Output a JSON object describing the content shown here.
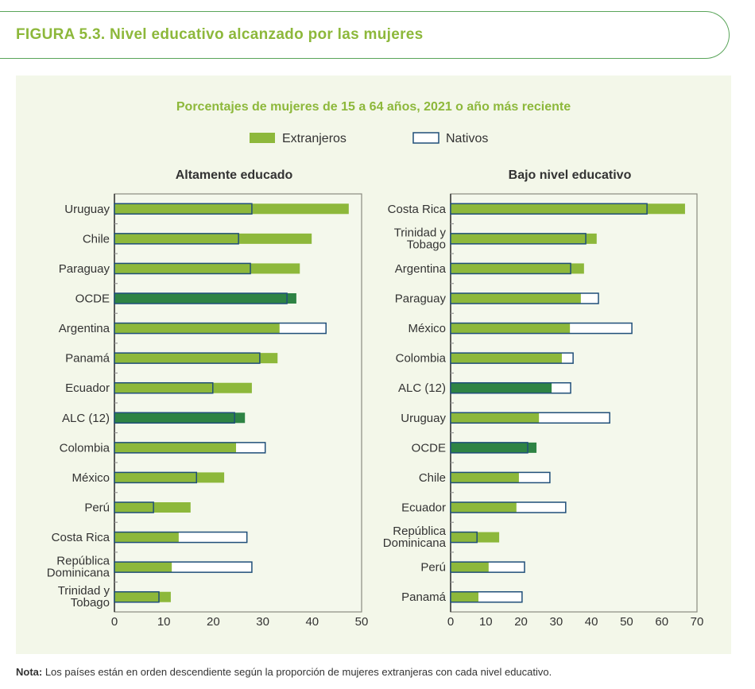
{
  "header": {
    "title": "FIGURA 5.3. Nivel educativo alcanzado por las mujeres"
  },
  "note": {
    "label": "Nota:",
    "text": " Los países están en orden descendiente según la proporción de mujeres extranjeras con cada nivel educativo."
  },
  "colors": {
    "extranjeros": "#8db83b",
    "aggregate": "#2e8344",
    "nativos_outline": "#1f4e79",
    "title_green": "#8db83b"
  },
  "chart_subtitle": "Porcentajes de mujeres de 15 a 64 años, 2021 o año más reciente",
  "legend": [
    {
      "name": "Extranjeros",
      "style": "filled"
    },
    {
      "name": "Nativos",
      "style": "outline"
    }
  ],
  "chart_data": [
    {
      "type": "bar",
      "orientation": "horizontal",
      "title": "Altamente educado",
      "xlim": [
        0,
        50
      ],
      "xticks": [
        0,
        10,
        20,
        30,
        40,
        50
      ],
      "categories": [
        "Uruguay",
        "Chile",
        "Paraguay",
        "OCDE",
        "Argentina",
        "Panamá",
        "Ecuador",
        "ALC (12)",
        "Colombia",
        "México",
        "Perú",
        "Costa Rica",
        "República Dominicana",
        "Trinidad y Tobago"
      ],
      "aggregates": [
        "OCDE",
        "ALC (12)"
      ],
      "series": [
        {
          "name": "Extranjeros",
          "values": [
            47.4,
            39.9,
            37.5,
            36.8,
            33.4,
            33.0,
            27.8,
            26.4,
            24.6,
            22.2,
            15.4,
            13.0,
            11.6,
            11.4
          ]
        },
        {
          "name": "Nativos",
          "values": [
            27.8,
            25.1,
            27.5,
            34.9,
            42.8,
            29.4,
            19.9,
            24.3,
            30.5,
            16.6,
            7.9,
            26.8,
            27.8,
            9.0
          ]
        }
      ]
    },
    {
      "type": "bar",
      "orientation": "horizontal",
      "title": "Bajo nivel educativo",
      "xlim": [
        0,
        70
      ],
      "xticks": [
        0,
        10,
        20,
        30,
        40,
        50,
        60,
        70
      ],
      "categories": [
        "Costa Rica",
        "Trinidad y Tobago",
        "Argentina",
        "Paraguay",
        "México",
        "Colombia",
        "ALC (12)",
        "Uruguay",
        "OCDE",
        "Chile",
        "Ecuador",
        "República Dominicana",
        "Perú",
        "Panamá"
      ],
      "aggregates": [
        "OCDE",
        "ALC (12)"
      ],
      "series": [
        {
          "name": "Extranjeros",
          "values": [
            66.6,
            41.5,
            37.9,
            37.0,
            33.9,
            31.6,
            28.7,
            25.1,
            24.4,
            19.4,
            18.7,
            13.8,
            10.8,
            7.9
          ]
        },
        {
          "name": "Nativos",
          "values": [
            55.8,
            38.4,
            34.1,
            42.0,
            51.5,
            34.8,
            34.1,
            45.2,
            21.9,
            28.2,
            32.7,
            7.5,
            21.0,
            20.3
          ]
        }
      ]
    }
  ]
}
